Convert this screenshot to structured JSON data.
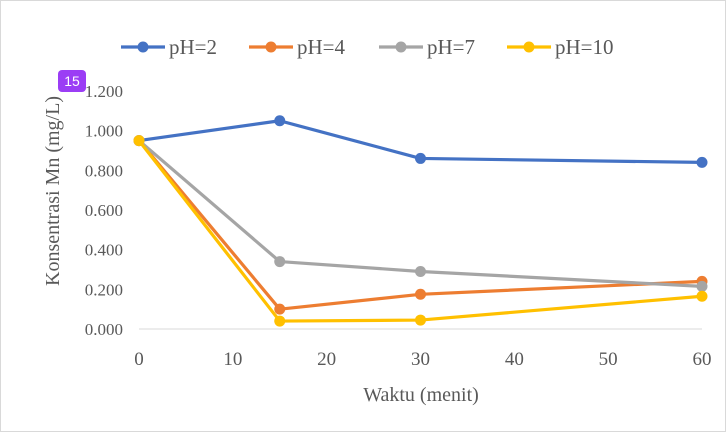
{
  "chart_data": {
    "type": "line",
    "title": "",
    "xlabel": "Waktu (menit)",
    "ylabel": "Konsentrasi  Mn (mg/L)",
    "x": [
      0,
      15,
      30,
      60
    ],
    "xlim": [
      0,
      60
    ],
    "ylim": [
      0,
      1.2
    ],
    "xticks": [
      0,
      10,
      20,
      30,
      40,
      50,
      60
    ],
    "xtick_labels": [
      "0",
      "10",
      "20",
      "30",
      "40",
      "50",
      "60"
    ],
    "yticks": [
      0,
      0.2,
      0.4,
      0.6,
      0.8,
      1.0,
      1.2
    ],
    "ytick_labels": [
      "0.000",
      "0.200",
      "0.400",
      "0.600",
      "0.800",
      "1.000",
      "1.200"
    ],
    "grid": false,
    "legend_position": "top",
    "series": [
      {
        "name": "pH=2",
        "color": "#4472c4",
        "values": [
          0.95,
          1.05,
          0.86,
          0.84
        ]
      },
      {
        "name": "pH=4",
        "color": "#ed7d31",
        "values": [
          0.95,
          0.1,
          0.175,
          0.24
        ]
      },
      {
        "name": "pH=7",
        "color": "#a5a5a5",
        "values": [
          0.95,
          0.34,
          0.29,
          0.215
        ]
      },
      {
        "name": "pH=10",
        "color": "#ffc000",
        "values": [
          0.95,
          0.04,
          0.045,
          0.165
        ]
      }
    ]
  },
  "annotation": {
    "badge": "15",
    "color": "#9b3df5"
  }
}
